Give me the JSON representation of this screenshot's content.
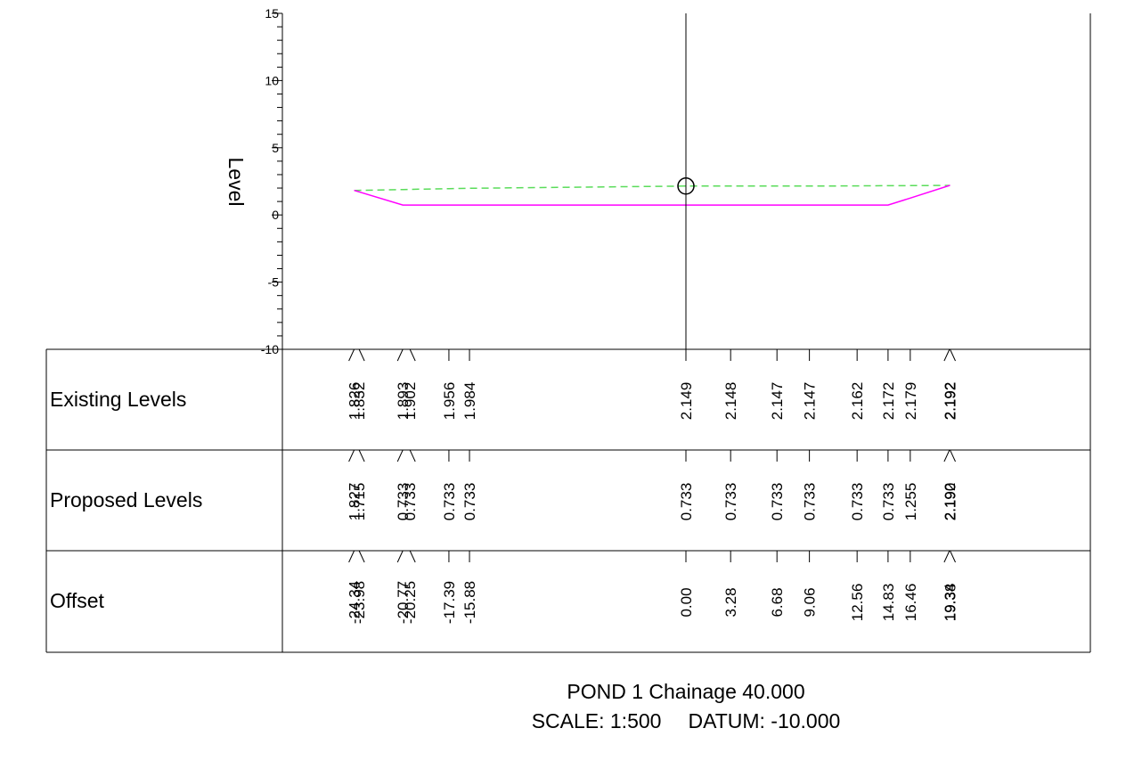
{
  "chart_data": {
    "type": "line",
    "ylabel": "Level",
    "ylim": [
      -10,
      15
    ],
    "y_ticks": [
      15,
      10,
      5,
      0,
      -5,
      -10
    ],
    "y_tick_labels": [
      "15",
      "10",
      "5",
      "0",
      "-5",
      "-10"
    ],
    "xlim": [
      -32,
      30
    ],
    "centerline_offset": 0.0,
    "centerline_marker_level": 2.149,
    "series": [
      {
        "key": "existing",
        "style": "dashed",
        "color": "#5adc5a",
        "x": [
          -24.34,
          -23.98,
          -20.77,
          -20.25,
          -17.39,
          -15.88,
          0.0,
          3.28,
          6.68,
          9.06,
          12.56,
          14.83,
          16.46,
          19.34,
          19.38
        ],
        "y": [
          1.826,
          1.832,
          1.893,
          1.902,
          1.956,
          1.984,
          2.149,
          2.148,
          2.147,
          2.147,
          2.162,
          2.172,
          2.179,
          2.192,
          2.192
        ]
      },
      {
        "key": "proposed",
        "style": "solid",
        "color": "#ff00ff",
        "x": [
          -24.34,
          -23.98,
          -20.77,
          -20.25,
          -17.39,
          -15.88,
          0.0,
          3.28,
          6.68,
          9.06,
          12.56,
          14.83,
          16.46,
          19.34,
          19.38
        ],
        "y": [
          1.827,
          1.715,
          0.733,
          0.733,
          0.733,
          0.733,
          0.733,
          0.733,
          0.733,
          0.733,
          0.733,
          0.733,
          1.255,
          2.192,
          2.19
        ]
      }
    ],
    "table": {
      "rows": [
        {
          "label": "Existing Levels",
          "values": [
            "1.826",
            "1.832",
            "1.893",
            "1.902",
            "1.956",
            "1.984",
            "2.149",
            "2.148",
            "2.147",
            "2.147",
            "2.162",
            "2.172",
            "2.179",
            "2.192",
            "2.192"
          ]
        },
        {
          "label": "Proposed Levels",
          "values": [
            "1.827",
            "1.715",
            "0.733",
            "0.733",
            "0.733",
            "0.733",
            "0.733",
            "0.733",
            "0.733",
            "0.733",
            "0.733",
            "0.733",
            "1.255",
            "2.192",
            "2.190"
          ]
        },
        {
          "label": "Offset",
          "values": [
            "-24.34",
            "-23.98",
            "-20.77",
            "-20.25",
            "-17.39",
            "-15.88",
            "0.00",
            "3.28",
            "6.68",
            "9.06",
            "12.56",
            "14.83",
            "16.46",
            "19.34",
            "19.38"
          ]
        }
      ]
    },
    "title": "POND 1 Chainage 40.000",
    "scale_label": "SCALE: 1:500",
    "datum_label": "DATUM: -10.000"
  }
}
